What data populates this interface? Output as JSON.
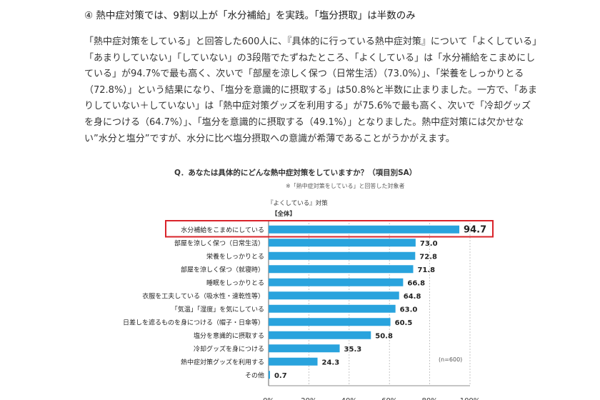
{
  "heading": "④ 熱中症対策では、9割以上が「水分補給」を実践。「塩分摂取」は半数のみ",
  "paragraph": "「熱中症対策をしている」と回答した600人に、『具体的に行っている熱中症対策』について「よくしている」「あまりしていない」「していない」の3段階でたずねたところ、「よくしている」は「水分補給をこまめにしている」が94.7%で最も高く、次いで「部屋を涼しく保つ（日常生活）（73.0%）」、「栄養をしっかりとる（72.8%）」という結果になり、「塩分を意識的に摂取する」は50.8%と半数に止まりました。一方で、「あまりしていない＋していない」は「熱中症対策グッズを利用する」が75.6%で最も高く、次いで「冷却グッズを身につける（64.7%）」、「塩分を意識的に摂取する（49.1%）」となりました。熱中症対策には欠かせない”水分と塩分”ですが、水分に比べ塩分摂取への意識が希薄であることがうかがえます。",
  "chart_data": {
    "type": "bar",
    "orientation": "horizontal",
    "title": "Q．あなたは具体的にどんな熱中症対策をしていますか？（項目別SA）",
    "note": "※「熱中症対策をしている」と回答した対象者",
    "series_label": "『よくしている』対策",
    "group_label": "【全体】",
    "n_label": "(n=600)",
    "categories": [
      "水分補給をこまめにしている",
      "部屋を涼しく保つ（日常生活）",
      "栄養をしっかりとる",
      "部屋を涼しく保つ（就寝時）",
      "睡眠をしっかりとる",
      "衣服を工夫している（吸水性・速乾性等）",
      "「気温」「湿度」を気にしている",
      "日差しを遮るものを身につける（帽子・日傘等）",
      "塩分を意識的に摂取する",
      "冷却グッズを身につける",
      "熱中症対策グッズを利用する",
      "その他"
    ],
    "values": [
      94.7,
      73.0,
      72.8,
      71.8,
      66.8,
      64.8,
      63.0,
      60.5,
      50.8,
      35.3,
      24.3,
      0.7
    ],
    "value_labels": [
      "94.7",
      "73.0",
      "72.8",
      "71.8",
      "66.8",
      "64.8",
      "63.0",
      "60.5",
      "50.8",
      "35.3",
      "24.3",
      "0.7"
    ],
    "highlight_index": 0,
    "xlim": [
      0,
      100
    ],
    "xticks": [
      "0%",
      "20%",
      "40%",
      "60%",
      "80%",
      "100%"
    ],
    "bar_color": "#29a3dd",
    "highlight_border_color": "#d9232a",
    "grid": true
  }
}
